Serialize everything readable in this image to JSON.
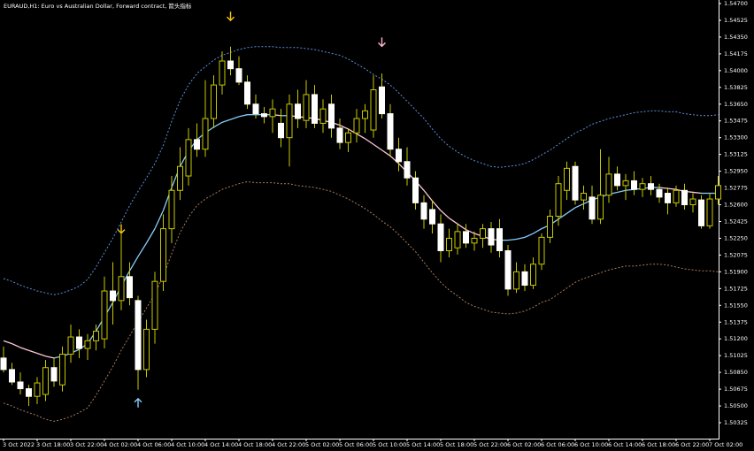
{
  "chart_data": {
    "type": "candlestick",
    "title": "EURAUD,H1: Euro vs Australian Dollar, Forward contract, 箭头指标",
    "categories": [
      "3 Oct 2022",
      null,
      null,
      null,
      "3 Oct 18:00",
      null,
      null,
      null,
      "3 Oct 22:00",
      null,
      null,
      null,
      "4 Oct 02:00",
      null,
      null,
      null,
      "4 Oct 06:00",
      null,
      null,
      null,
      "4 Oct 10:00",
      null,
      null,
      null,
      "4 Oct 14:00",
      null,
      null,
      null,
      "4 Oct 18:00",
      null,
      null,
      null,
      "4 Oct 22:00",
      null,
      null,
      null,
      "5 Oct 02:00",
      null,
      null,
      null,
      "5 Oct 06:00",
      null,
      null,
      null,
      "5 Oct 10:00",
      null,
      null,
      null,
      "5 Oct 14:00",
      null,
      null,
      null,
      "5 Oct 18:00",
      null,
      null,
      null,
      "5 Oct 22:00",
      null,
      null,
      null,
      "6 Oct 02:00",
      null,
      null,
      null,
      "6 Oct 06:00",
      null,
      null,
      null,
      "6 Oct 10:00",
      null,
      null,
      null,
      "6 Oct 14:00",
      null,
      null,
      null,
      "6 Oct 18:00",
      null,
      null,
      null,
      "6 Oct 22:00",
      null,
      null,
      null,
      "7 Oct 02:00",
      null
    ],
    "open": [
      1.51,
      1.5088,
      1.5075,
      1.5068,
      1.506,
      1.5062,
      1.509,
      1.5072,
      1.5104,
      1.5122,
      1.511,
      1.5118,
      1.512,
      1.517,
      1.516,
      1.5185,
      1.516,
      1.5088,
      1.513,
      1.518,
      1.5235,
      1.5275,
      1.529,
      1.5328,
      1.5318,
      1.535,
      1.5385,
      1.541,
      1.5402,
      1.5388,
      1.5365,
      1.5355,
      1.5352,
      1.5345,
      1.533,
      1.5365,
      1.5348,
      1.5375,
      1.5345,
      1.5365,
      1.534,
      1.5325,
      1.5335,
      1.535,
      1.5338,
      1.5383,
      1.5355,
      1.5318,
      1.5305,
      1.5288,
      1.5262,
      1.5255,
      1.524,
      1.5212,
      1.5215,
      1.5232,
      1.522,
      1.5225,
      1.5235,
      1.5235,
      1.5212,
      1.5172,
      1.519,
      1.5176,
      1.5198,
      1.5226,
      1.5248,
      1.5275,
      1.53,
      1.5265,
      1.5268,
      1.5245,
      1.527,
      1.5292,
      1.528,
      1.5285,
      1.5276,
      1.5282,
      1.5276,
      1.5272,
      1.5262,
      1.5275,
      1.526,
      1.5265,
      1.5238,
      1.5266
    ],
    "high": [
      1.5112,
      1.5095,
      1.5085,
      1.5072,
      1.508,
      1.5098,
      1.51,
      1.5112,
      1.5135,
      1.513,
      1.5125,
      1.5135,
      1.5185,
      1.52,
      1.523,
      1.52,
      1.5165,
      1.514,
      1.519,
      1.525,
      1.529,
      1.532,
      1.534,
      1.5345,
      1.539,
      1.5395,
      1.542,
      1.5425,
      1.5415,
      1.5395,
      1.5375,
      1.5362,
      1.537,
      1.536,
      1.5375,
      1.538,
      1.539,
      1.5385,
      1.537,
      1.5375,
      1.535,
      1.534,
      1.536,
      1.5365,
      1.5395,
      1.5397,
      1.5365,
      1.533,
      1.532,
      1.5295,
      1.527,
      1.5265,
      1.525,
      1.5235,
      1.524,
      1.524,
      1.5232,
      1.524,
      1.5242,
      1.5245,
      1.5218,
      1.52,
      1.5198,
      1.5205,
      1.523,
      1.5255,
      1.529,
      1.5305,
      1.5305,
      1.528,
      1.528,
      1.5318,
      1.531,
      1.53,
      1.5292,
      1.5295,
      1.5288,
      1.529,
      1.5282,
      1.5278,
      1.528,
      1.5282,
      1.5272,
      1.527,
      1.5272,
      1.529
    ],
    "low": [
      1.5085,
      1.5072,
      1.5062,
      1.505,
      1.5052,
      1.5055,
      1.507,
      1.5065,
      1.5095,
      1.51,
      1.5098,
      1.5108,
      1.511,
      1.5135,
      1.515,
      1.5155,
      1.5067,
      1.508,
      1.5115,
      1.517,
      1.522,
      1.5265,
      1.528,
      1.531,
      1.531,
      1.534,
      1.5375,
      1.5395,
      1.5385,
      1.536,
      1.535,
      1.5345,
      1.5335,
      1.532,
      1.53,
      1.534,
      1.534,
      1.534,
      1.5335,
      1.533,
      1.5318,
      1.5315,
      1.5325,
      1.5335,
      1.533,
      1.535,
      1.531,
      1.5295,
      1.528,
      1.5255,
      1.5235,
      1.523,
      1.52,
      1.5205,
      1.5208,
      1.5215,
      1.5212,
      1.5215,
      1.521,
      1.5205,
      1.5165,
      1.5168,
      1.517,
      1.5172,
      1.5192,
      1.522,
      1.5238,
      1.5265,
      1.526,
      1.5255,
      1.524,
      1.524,
      1.5262,
      1.5275,
      1.5265,
      1.527,
      1.5268,
      1.527,
      1.5262,
      1.525,
      1.5258,
      1.5255,
      1.5252,
      1.5235,
      1.5235,
      1.526
    ],
    "close": [
      1.5088,
      1.5075,
      1.5068,
      1.506,
      1.5074,
      1.509,
      1.5076,
      1.5104,
      1.5122,
      1.511,
      1.5118,
      1.5128,
      1.517,
      1.516,
      1.5185,
      1.5163,
      1.5088,
      1.513,
      1.518,
      1.5235,
      1.5275,
      1.53,
      1.5328,
      1.5318,
      1.535,
      1.5385,
      1.541,
      1.5402,
      1.5388,
      1.5365,
      1.5355,
      1.5352,
      1.536,
      1.533,
      1.5365,
      1.535,
      1.5375,
      1.5345,
      1.536,
      1.534,
      1.5325,
      1.5335,
      1.535,
      1.5358,
      1.538,
      1.5355,
      1.5318,
      1.5305,
      1.5288,
      1.5262,
      1.5245,
      1.524,
      1.5212,
      1.5225,
      1.5232,
      1.522,
      1.5225,
      1.5235,
      1.5218,
      1.5212,
      1.5172,
      1.519,
      1.5176,
      1.5198,
      1.5226,
      1.5248,
      1.5282,
      1.5298,
      1.5265,
      1.5272,
      1.5245,
      1.527,
      1.5292,
      1.528,
      1.5285,
      1.5276,
      1.5282,
      1.5276,
      1.5268,
      1.5262,
      1.5275,
      1.526,
      1.5266,
      1.5238,
      1.5266,
      1.528
    ],
    "bull_color": "#000000",
    "bear_color": "#ffffff",
    "outline_color": "#c8c800",
    "lines": [
      {
        "color": "#5b8fd6",
        "dashed": true,
        "values": [
          1.5183,
          1.518,
          1.5176,
          1.5173,
          1.517,
          1.5168,
          1.5166,
          1.5168,
          1.5171,
          1.5175,
          1.5182,
          1.5195,
          1.521,
          1.5225,
          1.5242,
          1.5259,
          1.5274,
          1.5288,
          1.5303,
          1.5322,
          1.5347,
          1.5369,
          1.5385,
          1.5397,
          1.5404,
          1.5411,
          1.5416,
          1.5419,
          1.5422,
          1.5424,
          1.5425,
          1.5425,
          1.5425,
          1.5424,
          1.5424,
          1.5424,
          1.5423,
          1.5422,
          1.542,
          1.5418,
          1.5416,
          1.5412,
          1.5407,
          1.5402,
          1.5396,
          1.5391,
          1.5385,
          1.5377,
          1.5368,
          1.5359,
          1.535,
          1.5339,
          1.5329,
          1.5321,
          1.5315,
          1.531,
          1.5306,
          1.5303,
          1.53,
          1.5299,
          1.53,
          1.5301,
          1.5303,
          1.5307,
          1.5312,
          1.5317,
          1.5323,
          1.5329,
          1.5335,
          1.5339,
          1.5344,
          1.5347,
          1.535,
          1.5352,
          1.5354,
          1.5356,
          1.5357,
          1.5358,
          1.5358,
          1.5357,
          1.5357,
          1.5355,
          1.5354,
          1.5353,
          1.5353,
          1.5354
        ]
      },
      {
        "up_color": "#87cefa",
        "down_color": "#ffc8d6",
        "dashed": false,
        "values": [
          1.5118,
          1.5115,
          1.5111,
          1.5108,
          1.5105,
          1.5102,
          1.51,
          1.5102,
          1.5105,
          1.5109,
          1.5115,
          1.5128,
          1.5143,
          1.5158,
          1.5175,
          1.5191,
          1.5206,
          1.522,
          1.5235,
          1.5254,
          1.5278,
          1.53,
          1.5316,
          1.5328,
          1.5335,
          1.5341,
          1.5346,
          1.5349,
          1.5352,
          1.5354,
          1.5354,
          1.5354,
          1.5354,
          1.5353,
          1.5353,
          1.5352,
          1.5351,
          1.535,
          1.5348,
          1.5346,
          1.5343,
          1.5339,
          1.5334,
          1.5329,
          1.5323,
          1.5317,
          1.5311,
          1.5303,
          1.5294,
          1.5285,
          1.5275,
          1.5264,
          1.5254,
          1.5246,
          1.524,
          1.5234,
          1.523,
          1.5227,
          1.5224,
          1.5223,
          1.5223,
          1.5224,
          1.5226,
          1.523,
          1.5235,
          1.5239,
          1.5245,
          1.5251,
          1.5257,
          1.5261,
          1.5265,
          1.5268,
          1.5271,
          1.5273,
          1.5275,
          1.5276,
          1.5277,
          1.5278,
          1.5278,
          1.5277,
          1.5276,
          1.5274,
          1.5273,
          1.5272,
          1.5272,
          1.5272
        ]
      },
      {
        "color": "#a87a5a",
        "dashed": true,
        "values": [
          1.5053,
          1.505,
          1.5046,
          1.5043,
          1.504,
          1.5036,
          1.5034,
          1.5036,
          1.5039,
          1.5043,
          1.5048,
          1.5061,
          1.5076,
          1.5091,
          1.5108,
          1.5123,
          1.5138,
          1.5152,
          1.5167,
          1.5186,
          1.5209,
          1.5231,
          1.5247,
          1.5259,
          1.5266,
          1.5271,
          1.5276,
          1.5279,
          1.5282,
          1.5284,
          1.5283,
          1.5283,
          1.5283,
          1.5282,
          1.5282,
          1.528,
          1.5279,
          1.5278,
          1.5276,
          1.5274,
          1.527,
          1.5266,
          1.5261,
          1.5256,
          1.525,
          1.5243,
          1.5237,
          1.5229,
          1.522,
          1.5211,
          1.52,
          1.5189,
          1.5179,
          1.5171,
          1.5165,
          1.5158,
          1.5154,
          1.5151,
          1.5148,
          1.5147,
          1.5146,
          1.5147,
          1.5149,
          1.5153,
          1.5158,
          1.5161,
          1.5167,
          1.5173,
          1.5179,
          1.5183,
          1.5186,
          1.5189,
          1.5192,
          1.5194,
          1.5196,
          1.5196,
          1.5197,
          1.5198,
          1.5198,
          1.5197,
          1.5195,
          1.5193,
          1.5192,
          1.5191,
          1.5191,
          1.519
        ]
      }
    ],
    "signals": [
      {
        "index": 14,
        "value": 1.5235,
        "direction": "down",
        "color": "#f5c518"
      },
      {
        "index": 16,
        "value": 1.5053,
        "direction": "up",
        "color": "#87cefa"
      },
      {
        "index": 27,
        "value": 1.5457,
        "direction": "down",
        "color": "#f5c518"
      },
      {
        "index": 45,
        "value": 1.543,
        "direction": "down",
        "color": "#ffb6c8"
      }
    ],
    "ylim": [
      1.50159,
      1.54737
    ],
    "yticks": [
      {
        "value": 1.547,
        "label": "1.54700"
      },
      {
        "value": 1.54525,
        "label": "1.54525"
      },
      {
        "value": 1.5435,
        "label": "1.54350"
      },
      {
        "value": 1.54175,
        "label": "1.54175"
      },
      {
        "value": 1.54,
        "label": "1.54000"
      },
      {
        "value": 1.53825,
        "label": "1.53825"
      },
      {
        "value": 1.5365,
        "label": "1.53650"
      },
      {
        "value": 1.53475,
        "label": "1.53475"
      },
      {
        "value": 1.533,
        "label": "1.53300"
      },
      {
        "value": 1.53125,
        "label": "1.53125"
      },
      {
        "value": 1.5295,
        "label": "1.52950"
      },
      {
        "value": 1.52775,
        "label": "1.52775"
      },
      {
        "value": 1.526,
        "label": "1.52600"
      },
      {
        "value": 1.52425,
        "label": "1.52425"
      },
      {
        "value": 1.5225,
        "label": "1.52250"
      },
      {
        "value": 1.52075,
        "label": "1.52075"
      },
      {
        "value": 1.519,
        "label": "1.51900"
      },
      {
        "value": 1.51725,
        "label": "1.51725"
      },
      {
        "value": 1.5155,
        "label": "1.51550"
      },
      {
        "value": 1.51375,
        "label": "1.51375"
      },
      {
        "value": 1.512,
        "label": "1.51200"
      },
      {
        "value": 1.51025,
        "label": "1.51025"
      },
      {
        "value": 1.5085,
        "label": "1.50850"
      },
      {
        "value": 1.50675,
        "label": "1.50675"
      },
      {
        "value": 1.505,
        "label": "1.50500"
      },
      {
        "value": 1.50325,
        "label": "1.50325"
      }
    ]
  }
}
